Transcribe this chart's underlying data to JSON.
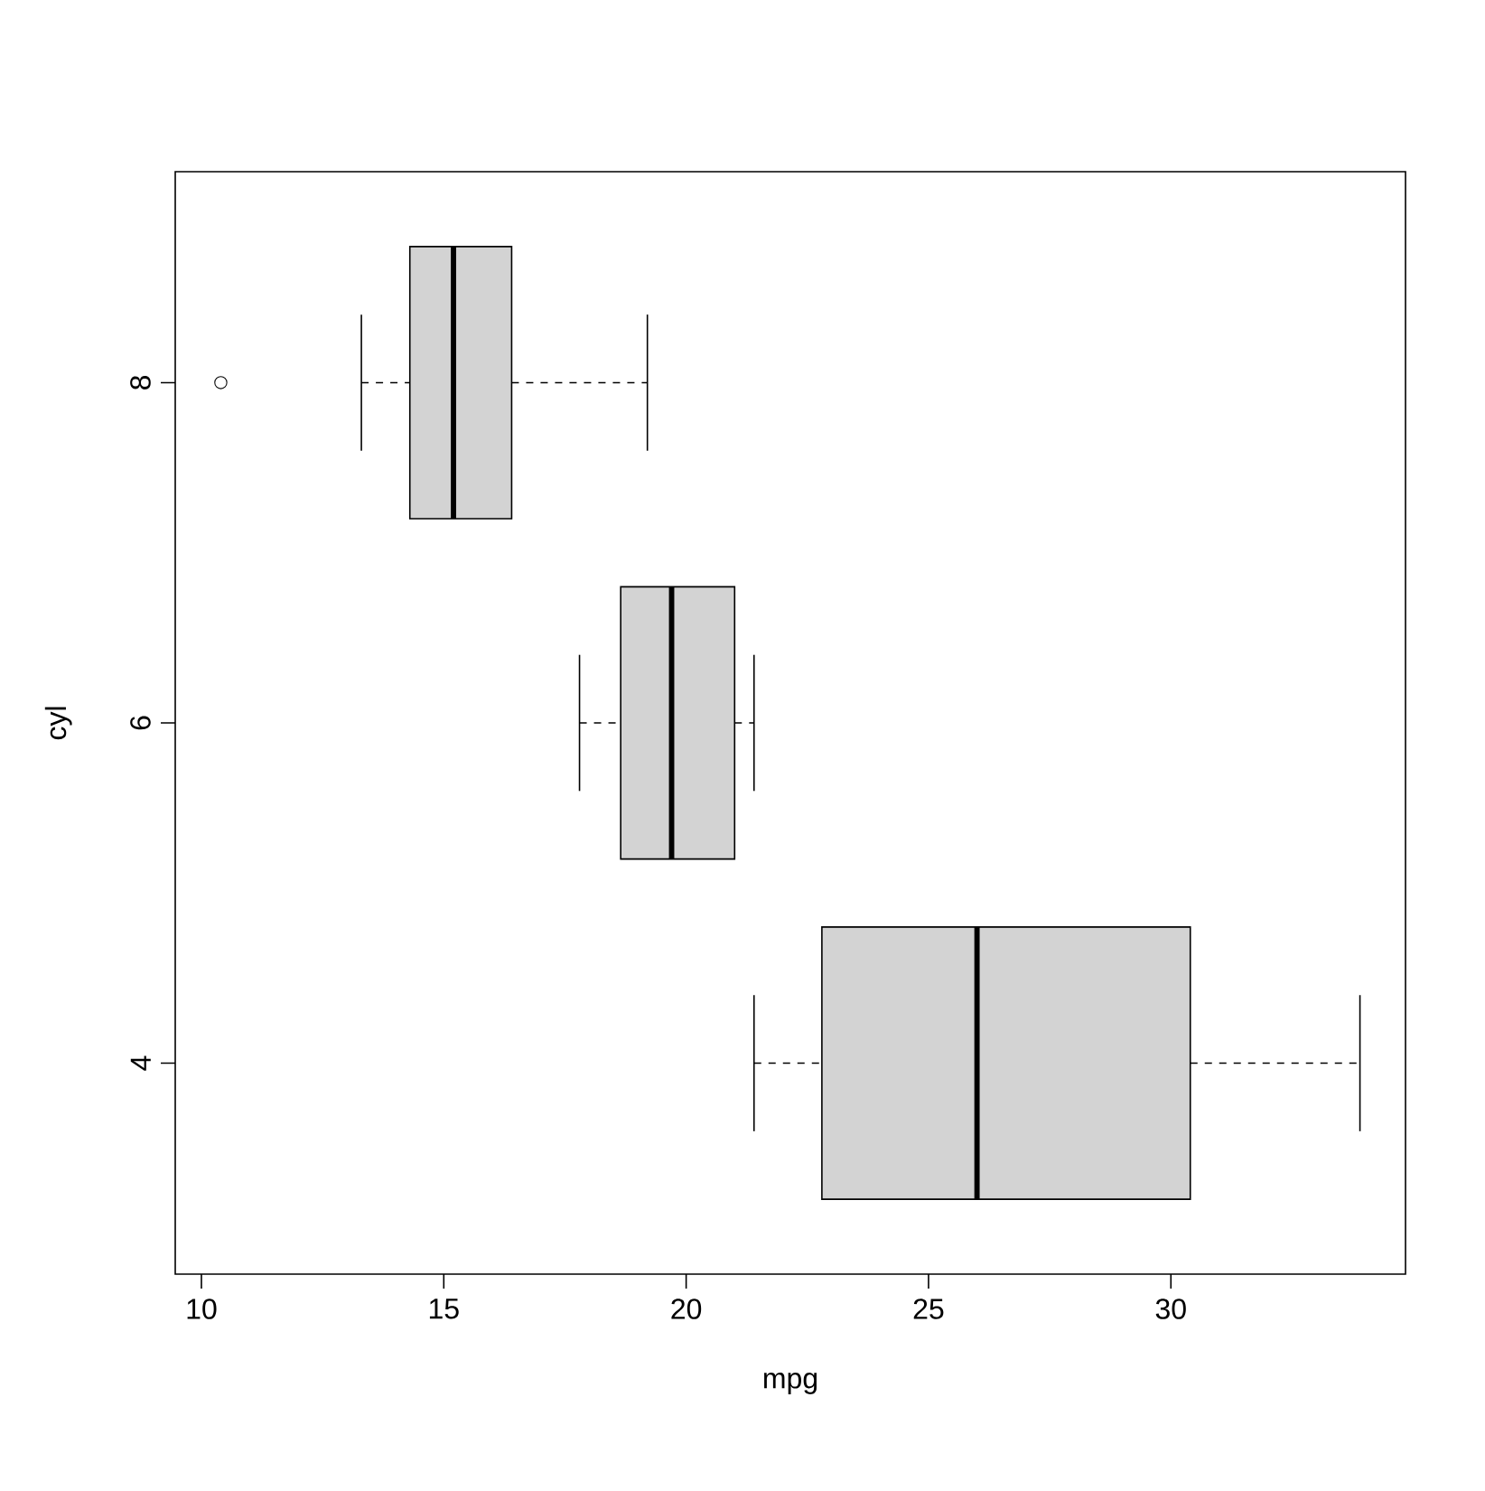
{
  "chart_data": {
    "type": "box",
    "orientation": "horizontal",
    "xlabel": "mpg",
    "ylabel": "cyl",
    "categories": [
      "8",
      "6",
      "4"
    ],
    "color": "#d3d3d3",
    "boxes": [
      {
        "low": 13.3,
        "q1": 14.3,
        "median": 15.2,
        "q3": 16.4,
        "high": 19.2,
        "outliers": [
          10.4
        ]
      },
      {
        "low": 17.8,
        "q1": 18.65,
        "median": 19.7,
        "q3": 21.0,
        "high": 21.4
      },
      {
        "low": 21.4,
        "q1": 22.8,
        "median": 26.0,
        "q3": 30.4,
        "high": 33.9
      }
    ],
    "xlim": [
      9.46,
      34.84
    ],
    "xticks": [
      10,
      15,
      20,
      25,
      30
    ]
  }
}
